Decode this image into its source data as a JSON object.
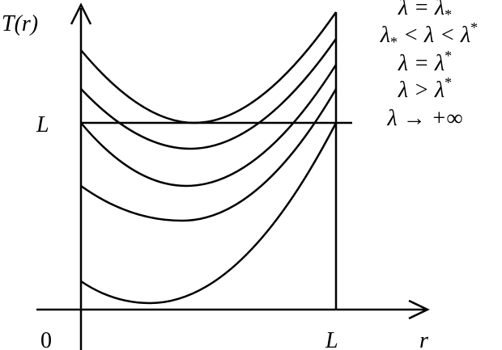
{
  "axes": {
    "y_label": "T(r)",
    "y_mark": "L",
    "origin": "0",
    "x_mark": "L",
    "x_label": "r"
  },
  "legend": [
    [
      "λ = λ",
      "*"
    ],
    [
      "λ",
      "*",
      " < λ < λ",
      "*"
    ],
    [
      "λ = λ",
      "*"
    ],
    [
      "λ > λ",
      "*"
    ],
    [
      "λ → +∞"
    ]
  ]
}
